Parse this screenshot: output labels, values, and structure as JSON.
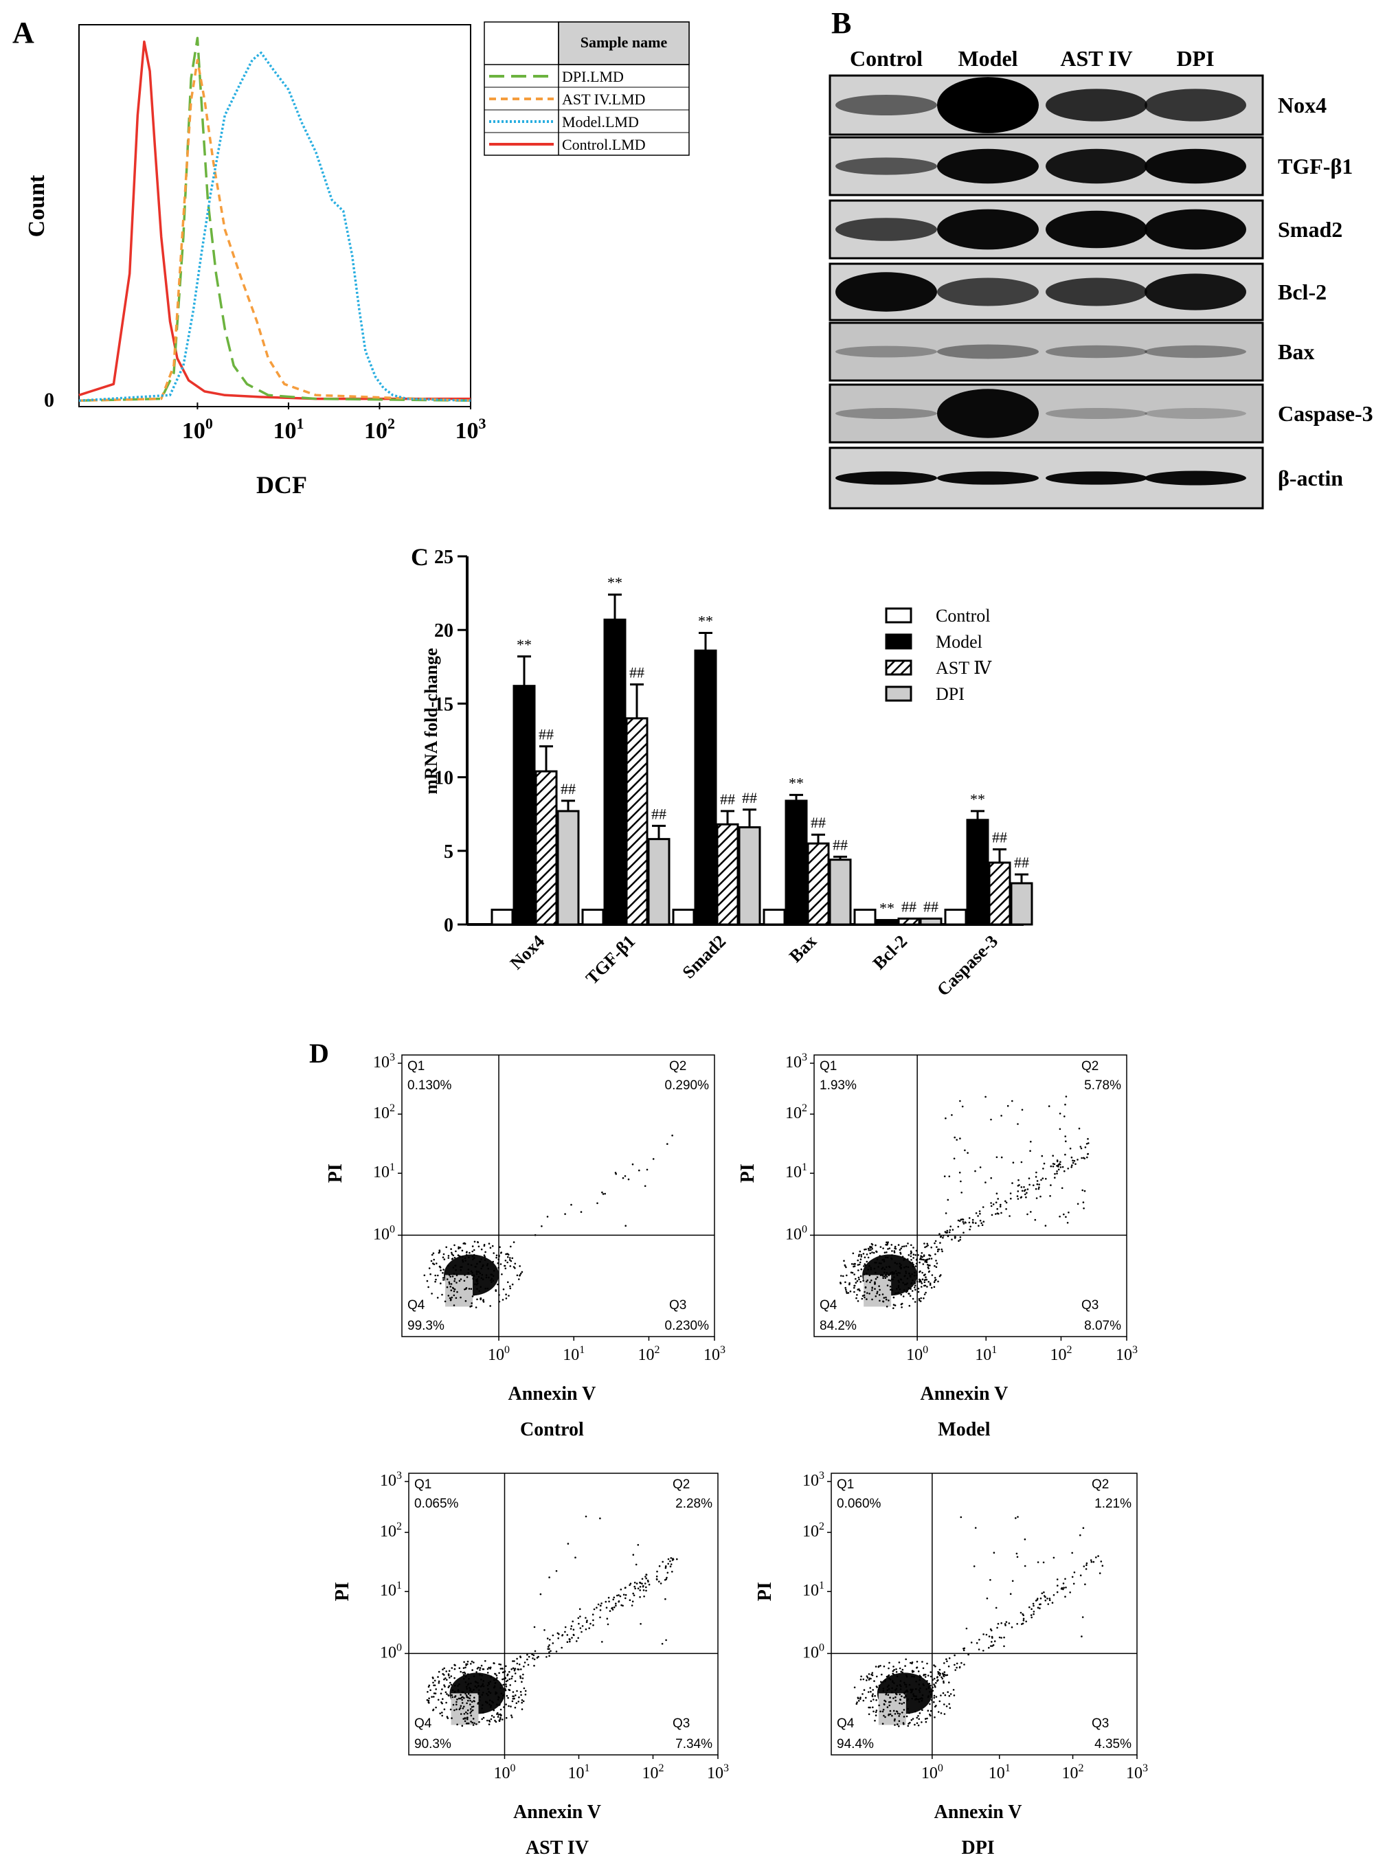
{
  "panels": {
    "a": "A",
    "b": "B",
    "c": "C",
    "d": "D"
  },
  "panel_a": {
    "ylabel": "Count",
    "xlabel": "DCF",
    "y_zero_label": "0",
    "x_ticks": [
      {
        "base": "10",
        "exp": "0"
      },
      {
        "base": "10",
        "exp": "1"
      },
      {
        "base": "10",
        "exp": "2"
      },
      {
        "base": "10",
        "exp": "3"
      }
    ],
    "legend_header": "Sample name",
    "legend": [
      {
        "name": "DPI.LMD",
        "color": "#6cb33f",
        "dash": "long-dash"
      },
      {
        "name": "AST IV.LMD",
        "color": "#f59d3d",
        "dash": "short-dash"
      },
      {
        "name": "Model.LMD",
        "color": "#29aee0",
        "dash": "dotted"
      },
      {
        "name": "Control.LMD",
        "color": "#e8332a",
        "dash": "solid"
      }
    ]
  },
  "panel_b": {
    "lanes": [
      "Control",
      "Model",
      "AST IV",
      "DPI"
    ],
    "proteins": [
      "Nox4",
      "TGF-β1",
      "Smad2",
      "Bcl-2",
      "Bax",
      "Caspase-3",
      "β-actin"
    ]
  },
  "chart_data": [
    {
      "type": "line",
      "panel": "A",
      "xlabel": "DCF",
      "ylabel": "Count",
      "x_scale": "log",
      "xlim": [
        0.05,
        1000
      ],
      "series": [
        {
          "name": "Control.LMD",
          "x": [
            0.05,
            0.12,
            0.18,
            0.22,
            0.26,
            0.3,
            0.34,
            0.4,
            0.5,
            0.6,
            0.8,
            1.2,
            2,
            5,
            20,
            100,
            1000
          ],
          "y": [
            0.02,
            0.05,
            0.35,
            0.78,
            0.98,
            0.9,
            0.7,
            0.45,
            0.22,
            0.12,
            0.06,
            0.03,
            0.02,
            0.015,
            0.01,
            0.01,
            0.01
          ]
        },
        {
          "name": "DPI.LMD",
          "x": [
            0.05,
            0.4,
            0.55,
            0.7,
            0.85,
            1.0,
            1.15,
            1.3,
            1.6,
            2,
            2.5,
            3.5,
            6,
            20,
            1000
          ],
          "y": [
            0.005,
            0.01,
            0.08,
            0.45,
            0.88,
            0.99,
            0.75,
            0.55,
            0.35,
            0.2,
            0.1,
            0.05,
            0.02,
            0.01,
            0.005
          ]
        },
        {
          "name": "AST IV.LMD",
          "x": [
            0.05,
            0.4,
            0.55,
            0.7,
            0.85,
            1.0,
            1.2,
            1.5,
            2,
            3,
            4.5,
            6,
            9,
            20,
            1000
          ],
          "y": [
            0.005,
            0.01,
            0.1,
            0.5,
            0.82,
            0.93,
            0.82,
            0.65,
            0.47,
            0.34,
            0.22,
            0.12,
            0.05,
            0.02,
            0.005
          ]
        },
        {
          "name": "Model.LMD",
          "x": [
            0.05,
            0.5,
            0.7,
            0.9,
            1.1,
            1.4,
            2,
            3,
            4,
            5,
            7,
            10,
            14,
            20,
            30,
            40,
            50,
            60,
            70,
            90,
            110,
            140,
            200,
            1000
          ],
          "y": [
            0.005,
            0.02,
            0.1,
            0.25,
            0.4,
            0.57,
            0.78,
            0.87,
            0.93,
            0.95,
            0.9,
            0.85,
            0.76,
            0.68,
            0.55,
            0.52,
            0.4,
            0.25,
            0.14,
            0.07,
            0.04,
            0.02,
            0.01,
            0.005
          ]
        }
      ]
    },
    {
      "type": "bar",
      "panel": "C",
      "ylabel": "mRNA fold-change",
      "ylim": [
        0,
        25
      ],
      "yticks": [
        0,
        5,
        10,
        15,
        20,
        25
      ],
      "categories": [
        "Nox4",
        "TGF-β1",
        "Smad2",
        "Bax",
        "Bcl-2",
        "Caspase-3"
      ],
      "legend_position": "top-right",
      "series": [
        {
          "name": "Control",
          "fill": "white",
          "values": [
            1,
            1,
            1,
            1,
            1,
            1
          ],
          "err": [
            0,
            0,
            0,
            0,
            0,
            0
          ],
          "marks": [
            "",
            "",
            "",
            "",
            "",
            ""
          ]
        },
        {
          "name": "Model",
          "fill": "black",
          "values": [
            16.2,
            20.7,
            18.6,
            8.4,
            0.3,
            7.1
          ],
          "err": [
            2.0,
            1.7,
            1.2,
            0.4,
            0,
            0.6
          ],
          "marks": [
            "**",
            "**",
            "**",
            "**",
            "**",
            "**"
          ]
        },
        {
          "name": "AST Ⅳ",
          "fill": "hatch",
          "values": [
            10.4,
            14.0,
            6.8,
            5.5,
            0.4,
            4.2
          ],
          "err": [
            1.7,
            2.3,
            0.9,
            0.6,
            0,
            0.9
          ],
          "marks": [
            "##",
            "##",
            "##",
            "##",
            "##",
            "##"
          ]
        },
        {
          "name": "DPI",
          "fill": "#cccccc",
          "values": [
            7.7,
            5.8,
            6.6,
            4.4,
            0.4,
            2.8
          ],
          "err": [
            0.7,
            0.9,
            1.2,
            0.2,
            0,
            0.6
          ],
          "marks": [
            "##",
            "##",
            "##",
            "##",
            "##",
            "##"
          ]
        }
      ]
    },
    {
      "type": "scatter",
      "panel": "D",
      "xlabel": "Annexin V",
      "ylabel": "PI",
      "x_scale": "log",
      "y_scale": "log",
      "tick_exponents": [
        "0",
        "1",
        "2",
        "3"
      ],
      "plots": [
        {
          "title": "Control",
          "q1": "0.130%",
          "q2": "0.290%",
          "q3": "0.230%",
          "q4": "99.3%"
        },
        {
          "title": "Model",
          "q1": "1.93%",
          "q2": "5.78%",
          "q3": "8.07%",
          "q4": "84.2%"
        },
        {
          "title": "AST IV",
          "q1": "0.065%",
          "q2": "2.28%",
          "q3": "7.34%",
          "q4": "90.3%"
        },
        {
          "title": "DPI",
          "q1": "0.060%",
          "q2": "1.21%",
          "q3": "4.35%",
          "q4": "94.4%"
        }
      ],
      "quadrant_names": [
        "Q1",
        "Q2",
        "Q3",
        "Q4"
      ]
    }
  ]
}
